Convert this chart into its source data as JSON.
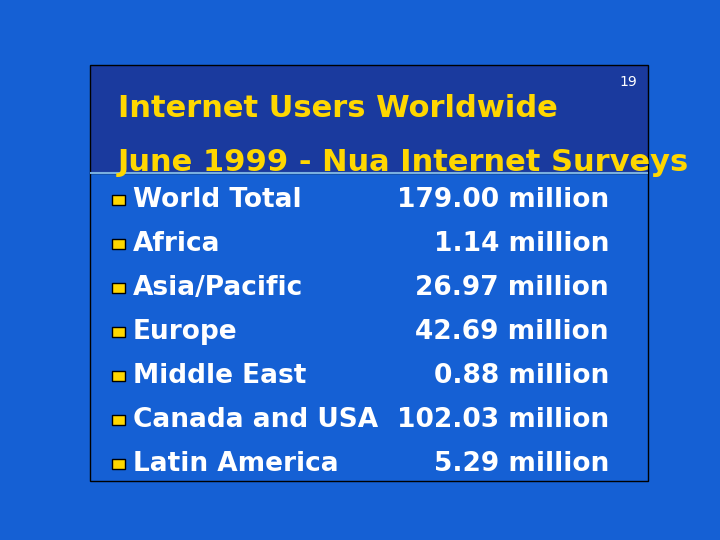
{
  "slide_number": "19",
  "title_line1": "Internet Users Worldwide",
  "title_line2": "June 1999 - Nua Internet Surveys",
  "title_color": "#FFD700",
  "bg_color_top": "#1a3a9e",
  "bg_color_bottom": "#1560d4",
  "divider_color": "#7ab0e0",
  "square_color": "#FFD700",
  "label_color": "#FFFFFF",
  "value_color": "#FFFFFF",
  "slide_num_color": "#FFFFFF",
  "rows": [
    {
      "label": "World Total",
      "value": "179.00 million"
    },
    {
      "label": "Africa",
      "value": "1.14 million"
    },
    {
      "label": "Asia/Pacific",
      "value": "26.97 million"
    },
    {
      "label": "Europe",
      "value": "42.69 million"
    },
    {
      "label": "Middle East",
      "value": "0.88 million"
    },
    {
      "label": "Canada and USA",
      "value": "102.03 million"
    },
    {
      "label": "Latin America",
      "value": "5.29 million"
    }
  ],
  "title_fontsize": 22,
  "label_fontsize": 19,
  "value_fontsize": 19,
  "slide_num_fontsize": 10
}
